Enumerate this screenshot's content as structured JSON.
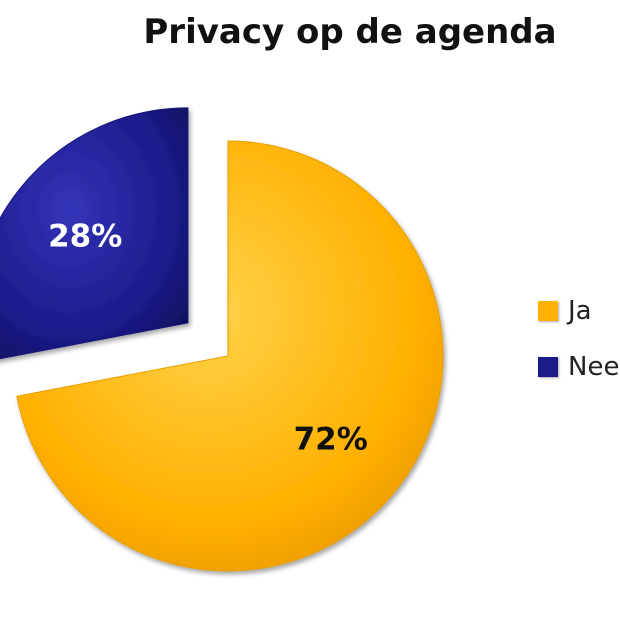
{
  "chart_data": {
    "type": "pie",
    "title": "Privacy op de agenda",
    "categories": [
      "Ja",
      "Nee"
    ],
    "values": [
      72,
      28
    ],
    "labels": [
      "72%",
      "28%"
    ],
    "colors": [
      "#FFB000",
      "#1B1B8A"
    ],
    "label_colors": [
      "#111111",
      "#FFFFFF"
    ],
    "exploded": [
      "Nee"
    ],
    "legend_position": "right",
    "legend": [
      {
        "label": "Ja",
        "color": "#FFB000"
      },
      {
        "label": "Nee",
        "color": "#1B1B8A"
      }
    ]
  }
}
